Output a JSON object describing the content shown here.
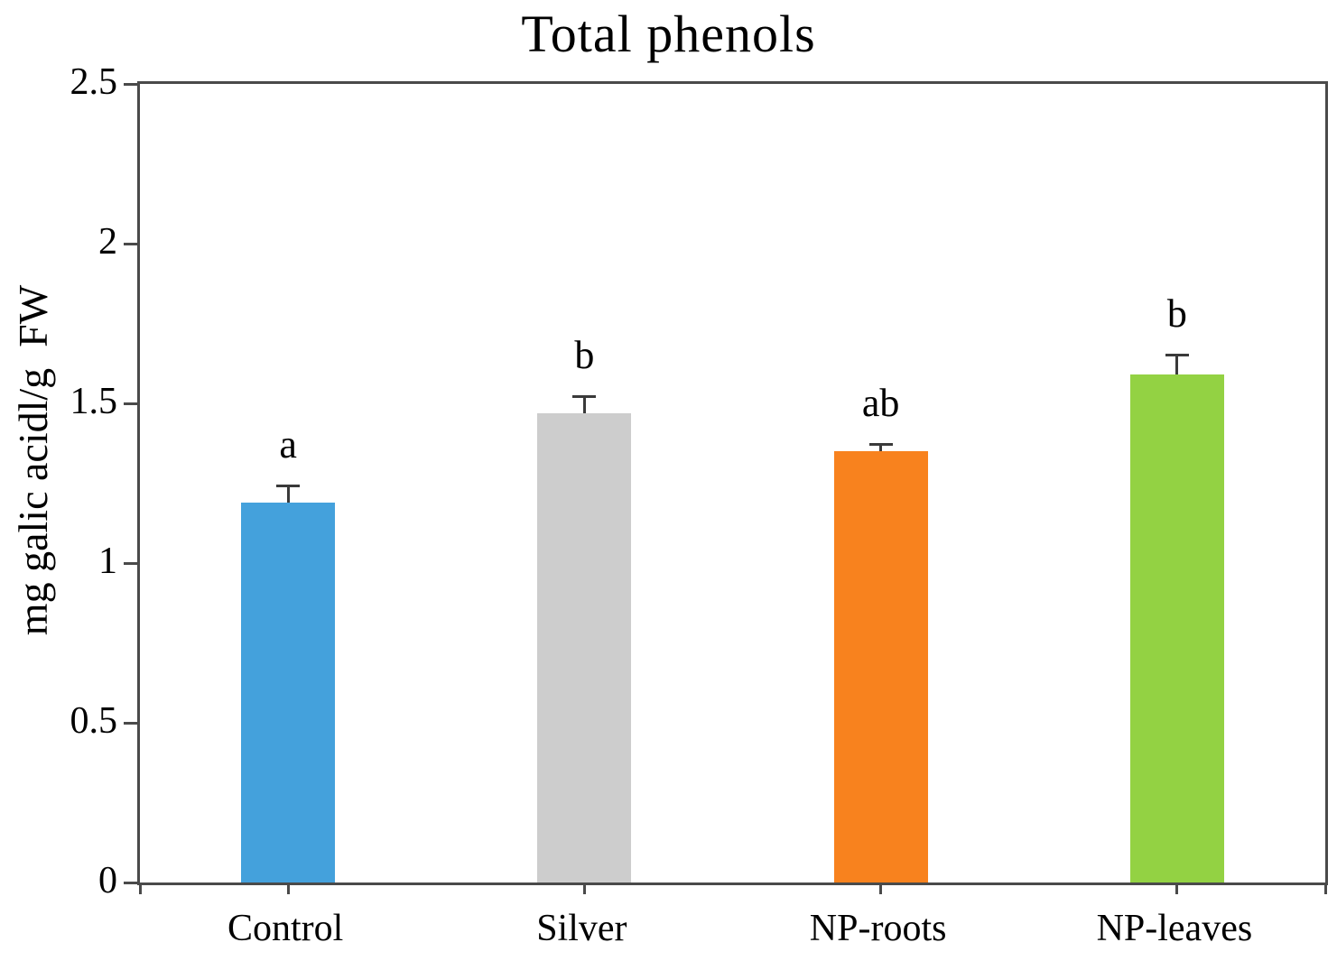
{
  "chart_data": {
    "type": "bar",
    "title": "Total phenols",
    "ylabel": "mg galic acidl/g  FW",
    "xlabel": "",
    "ylim": [
      0,
      2.5
    ],
    "yticks": [
      0,
      0.5,
      1,
      1.5,
      2,
      2.5
    ],
    "ytick_labels": [
      "0",
      "0.5",
      "1",
      "1.5",
      "2",
      "2.5"
    ],
    "categories": [
      "Control",
      "Silver",
      "NP-roots",
      "NP-leaves"
    ],
    "values": [
      1.19,
      1.47,
      1.35,
      1.59
    ],
    "errors": [
      0.05,
      0.05,
      0.02,
      0.06
    ],
    "sig_letters": [
      "a",
      "b",
      "ab",
      "b"
    ],
    "bar_colors": [
      "#44A1DC",
      "#CDCDCD",
      "#F8821E",
      "#93D243"
    ],
    "axis_color": "#4a4a4a",
    "grid": false,
    "legend": null
  }
}
